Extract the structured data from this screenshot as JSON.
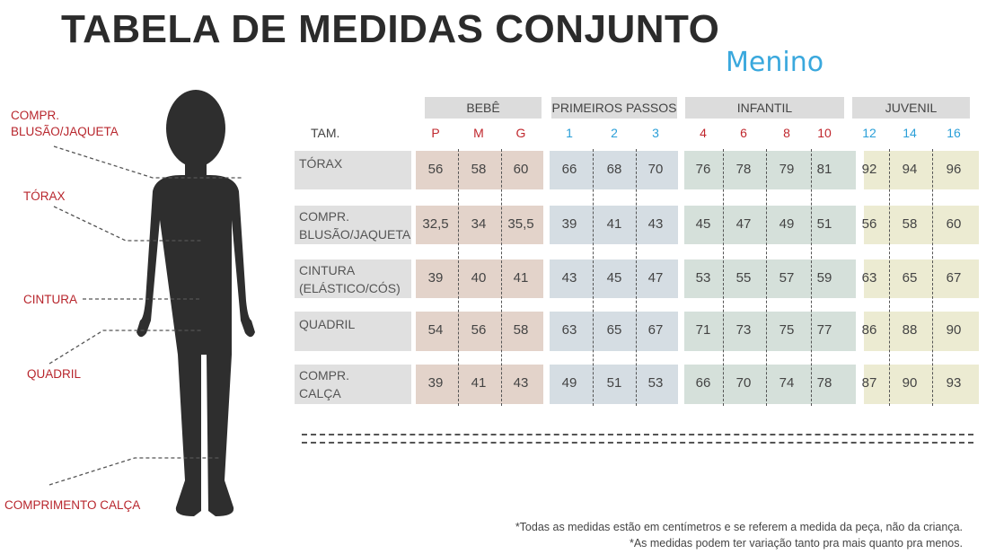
{
  "title": "TABELA DE MEDIDAS CONJUNTO",
  "subtitle": "Menino",
  "body_labels": {
    "compr_blusao": "COMPR.\nBLUSÃO/JAQUETA",
    "torax": "TÓRAX",
    "cintura": "CINTURA",
    "quadril": "QUADRIL",
    "comprimento_calca": "COMPRIMENTO CALÇA"
  },
  "table": {
    "size_header": "TAM.",
    "groups": [
      {
        "name": "BEBÊ",
        "sizes": [
          "P",
          "M",
          "G"
        ],
        "size_color": "#c0272d",
        "band_color": "#e3d3ca"
      },
      {
        "name": "PRIMEIROS PASSOS",
        "sizes": [
          "1",
          "2",
          "3"
        ],
        "size_color": "#2a9fd8",
        "band_color": "#d5dde3"
      },
      {
        "name": "INFANTIL",
        "sizes": [
          "4",
          "6",
          "8",
          "10"
        ],
        "size_color": "#c0272d",
        "band_color": "#d5e0da"
      },
      {
        "name": "JUVENIL",
        "sizes": [
          "12",
          "14",
          "16"
        ],
        "size_color": "#2a9fd8",
        "band_color": "#ecebd2"
      }
    ],
    "rows": [
      {
        "label": "TÓRAX",
        "values": [
          "56",
          "58",
          "60",
          "66",
          "68",
          "70",
          "76",
          "78",
          "79",
          "81",
          "92",
          "94",
          "96"
        ]
      },
      {
        "label": "COMPR.\nBLUSÃO/JAQUETA",
        "values": [
          "32,5",
          "34",
          "35,5",
          "39",
          "41",
          "43",
          "45",
          "47",
          "49",
          "51",
          "56",
          "58",
          "60"
        ]
      },
      {
        "label": "CINTURA\n(ELÁSTICO/CÓS)",
        "values": [
          "39",
          "40",
          "41",
          "43",
          "45",
          "47",
          "53",
          "55",
          "57",
          "59",
          "63",
          "65",
          "67"
        ]
      },
      {
        "label": "QUADRIL",
        "values": [
          "54",
          "56",
          "58",
          "63",
          "65",
          "67",
          "71",
          "73",
          "75",
          "77",
          "86",
          "88",
          "90"
        ]
      },
      {
        "label": "COMPR.\nCALÇA",
        "values": [
          "39",
          "41",
          "43",
          "49",
          "51",
          "53",
          "66",
          "70",
          "74",
          "78",
          "87",
          "90",
          "93"
        ]
      }
    ]
  },
  "footnotes": [
    "*Todas as medidas estão em centímetros e se referem a medida da peça, não da criança.",
    "*As medidas podem ter variação tanto pra mais quanto pra menos."
  ]
}
